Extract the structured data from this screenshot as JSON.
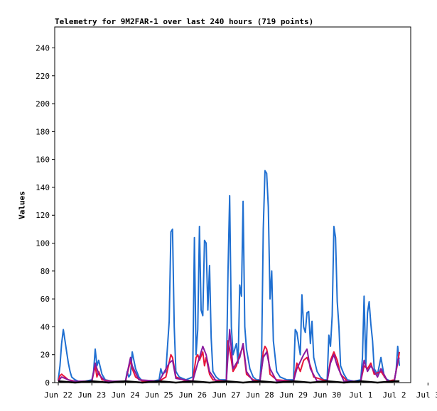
{
  "chart_data": {
    "type": "line",
    "title": "Telemetry for 9M2FAR-1 over last 240 hours (719 points)",
    "xlabel": "",
    "ylabel": "Values",
    "ylim": [
      0,
      255
    ],
    "yticks": [
      0,
      20,
      40,
      60,
      80,
      100,
      120,
      140,
      160,
      180,
      200,
      220,
      240
    ],
    "xlim_days": [
      0,
      10.5
    ],
    "xtick_labels": [
      "Jun 22",
      "Jun 23",
      "Jun 24",
      "Jun 25",
      "Jun 26",
      "Jun 27",
      "Jun 28",
      "Jun 29",
      "Jun 30",
      "Jul 1",
      "Jul 2",
      "Jul 3"
    ],
    "grid": false,
    "legend": "none",
    "series": [
      {
        "color": "#1f6fd1",
        "points": [
          [
            0.0,
            2
          ],
          [
            0.05,
            12
          ],
          [
            0.1,
            28
          ],
          [
            0.15,
            38
          ],
          [
            0.2,
            30
          ],
          [
            0.25,
            22
          ],
          [
            0.3,
            14
          ],
          [
            0.35,
            8
          ],
          [
            0.4,
            4
          ],
          [
            0.5,
            2
          ],
          [
            0.6,
            1
          ],
          [
            0.8,
            1
          ],
          [
            1.0,
            2
          ],
          [
            1.05,
            8
          ],
          [
            1.1,
            24
          ],
          [
            1.15,
            12
          ],
          [
            1.2,
            16
          ],
          [
            1.3,
            6
          ],
          [
            1.4,
            2
          ],
          [
            1.6,
            1
          ],
          [
            1.8,
            1
          ],
          [
            2.0,
            1
          ],
          [
            2.05,
            8
          ],
          [
            2.1,
            4
          ],
          [
            2.15,
            6
          ],
          [
            2.2,
            22
          ],
          [
            2.25,
            16
          ],
          [
            2.3,
            10
          ],
          [
            2.4,
            4
          ],
          [
            2.5,
            1
          ],
          [
            2.8,
            1
          ],
          [
            3.0,
            2
          ],
          [
            3.05,
            10
          ],
          [
            3.1,
            6
          ],
          [
            3.2,
            8
          ],
          [
            3.3,
            44
          ],
          [
            3.35,
            108
          ],
          [
            3.4,
            110
          ],
          [
            3.45,
            40
          ],
          [
            3.5,
            8
          ],
          [
            3.6,
            4
          ],
          [
            3.8,
            2
          ],
          [
            4.0,
            4
          ],
          [
            4.05,
            104
          ],
          [
            4.1,
            20
          ],
          [
            4.15,
            38
          ],
          [
            4.2,
            112
          ],
          [
            4.25,
            52
          ],
          [
            4.3,
            48
          ],
          [
            4.35,
            102
          ],
          [
            4.4,
            100
          ],
          [
            4.45,
            52
          ],
          [
            4.5,
            84
          ],
          [
            4.55,
            32
          ],
          [
            4.6,
            8
          ],
          [
            4.7,
            4
          ],
          [
            4.8,
            2
          ],
          [
            5.0,
            2
          ],
          [
            5.05,
            80
          ],
          [
            5.1,
            134
          ],
          [
            5.15,
            40
          ],
          [
            5.2,
            20
          ],
          [
            5.3,
            28
          ],
          [
            5.35,
            14
          ],
          [
            5.4,
            70
          ],
          [
            5.45,
            62
          ],
          [
            5.5,
            130
          ],
          [
            5.55,
            40
          ],
          [
            5.6,
            24
          ],
          [
            5.7,
            10
          ],
          [
            5.8,
            4
          ],
          [
            5.9,
            2
          ],
          [
            6.0,
            2
          ],
          [
            6.05,
            20
          ],
          [
            6.1,
            110
          ],
          [
            6.15,
            152
          ],
          [
            6.2,
            150
          ],
          [
            6.25,
            126
          ],
          [
            6.3,
            60
          ],
          [
            6.35,
            80
          ],
          [
            6.4,
            30
          ],
          [
            6.5,
            8
          ],
          [
            6.6,
            4
          ],
          [
            6.8,
            2
          ],
          [
            7.0,
            2
          ],
          [
            7.05,
            38
          ],
          [
            7.1,
            36
          ],
          [
            7.2,
            20
          ],
          [
            7.25,
            63
          ],
          [
            7.3,
            40
          ],
          [
            7.35,
            36
          ],
          [
            7.4,
            50
          ],
          [
            7.45,
            51
          ],
          [
            7.5,
            28
          ],
          [
            7.55,
            44
          ],
          [
            7.6,
            18
          ],
          [
            7.7,
            8
          ],
          [
            7.8,
            4
          ],
          [
            7.9,
            2
          ],
          [
            8.0,
            2
          ],
          [
            8.05,
            34
          ],
          [
            8.1,
            26
          ],
          [
            8.15,
            48
          ],
          [
            8.2,
            112
          ],
          [
            8.25,
            104
          ],
          [
            8.3,
            58
          ],
          [
            8.35,
            40
          ],
          [
            8.4,
            12
          ],
          [
            8.5,
            6
          ],
          [
            8.6,
            2
          ],
          [
            8.8,
            1
          ],
          [
            9.0,
            2
          ],
          [
            9.05,
            18
          ],
          [
            9.1,
            62
          ],
          [
            9.15,
            12
          ],
          [
            9.2,
            50
          ],
          [
            9.25,
            58
          ],
          [
            9.3,
            42
          ],
          [
            9.35,
            30
          ],
          [
            9.4,
            10
          ],
          [
            9.5,
            6
          ],
          [
            9.6,
            18
          ],
          [
            9.7,
            4
          ],
          [
            9.8,
            2
          ],
          [
            9.9,
            1
          ],
          [
            10.0,
            2
          ],
          [
            10.05,
            8
          ],
          [
            10.1,
            26
          ],
          [
            10.15,
            12
          ]
        ]
      },
      {
        "color": "#e8153a",
        "points": [
          [
            0.0,
            1
          ],
          [
            0.05,
            5
          ],
          [
            0.1,
            6
          ],
          [
            0.2,
            4
          ],
          [
            0.3,
            2
          ],
          [
            0.5,
            1
          ],
          [
            1.0,
            1
          ],
          [
            1.1,
            12
          ],
          [
            1.15,
            4
          ],
          [
            1.2,
            8
          ],
          [
            1.3,
            2
          ],
          [
            1.6,
            1
          ],
          [
            2.0,
            1
          ],
          [
            2.15,
            16
          ],
          [
            2.2,
            10
          ],
          [
            2.3,
            4
          ],
          [
            2.5,
            1
          ],
          [
            3.0,
            1
          ],
          [
            3.2,
            4
          ],
          [
            3.35,
            20
          ],
          [
            3.4,
            18
          ],
          [
            3.5,
            4
          ],
          [
            3.8,
            1
          ],
          [
            4.0,
            1
          ],
          [
            4.1,
            18
          ],
          [
            4.15,
            20
          ],
          [
            4.2,
            16
          ],
          [
            4.3,
            22
          ],
          [
            4.35,
            12
          ],
          [
            4.4,
            18
          ],
          [
            4.5,
            6
          ],
          [
            4.6,
            2
          ],
          [
            5.0,
            1
          ],
          [
            5.05,
            30
          ],
          [
            5.1,
            24
          ],
          [
            5.2,
            8
          ],
          [
            5.3,
            12
          ],
          [
            5.4,
            20
          ],
          [
            5.5,
            26
          ],
          [
            5.6,
            6
          ],
          [
            5.8,
            2
          ],
          [
            6.0,
            1
          ],
          [
            6.05,
            10
          ],
          [
            6.1,
            22
          ],
          [
            6.15,
            26
          ],
          [
            6.2,
            24
          ],
          [
            6.25,
            18
          ],
          [
            6.3,
            6
          ],
          [
            6.5,
            2
          ],
          [
            7.0,
            1
          ],
          [
            7.1,
            14
          ],
          [
            7.2,
            8
          ],
          [
            7.3,
            16
          ],
          [
            7.4,
            18
          ],
          [
            7.5,
            12
          ],
          [
            7.6,
            4
          ],
          [
            8.0,
            1
          ],
          [
            8.1,
            16
          ],
          [
            8.2,
            22
          ],
          [
            8.3,
            16
          ],
          [
            8.4,
            6
          ],
          [
            8.6,
            1
          ],
          [
            9.0,
            1
          ],
          [
            9.1,
            12
          ],
          [
            9.2,
            10
          ],
          [
            9.3,
            14
          ],
          [
            9.4,
            6
          ],
          [
            9.6,
            8
          ],
          [
            9.8,
            1
          ],
          [
            10.0,
            2
          ],
          [
            10.1,
            14
          ],
          [
            10.15,
            22
          ]
        ]
      },
      {
        "color": "#8a1a9e",
        "points": [
          [
            0.0,
            1
          ],
          [
            0.1,
            4
          ],
          [
            0.2,
            3
          ],
          [
            0.4,
            1
          ],
          [
            1.0,
            1
          ],
          [
            1.1,
            14
          ],
          [
            1.2,
            6
          ],
          [
            1.4,
            1
          ],
          [
            2.0,
            1
          ],
          [
            2.15,
            18
          ],
          [
            2.2,
            12
          ],
          [
            2.4,
            2
          ],
          [
            3.0,
            1
          ],
          [
            3.3,
            14
          ],
          [
            3.4,
            16
          ],
          [
            3.5,
            3
          ],
          [
            4.0,
            1
          ],
          [
            4.15,
            14
          ],
          [
            4.3,
            26
          ],
          [
            4.4,
            20
          ],
          [
            4.5,
            8
          ],
          [
            4.7,
            1
          ],
          [
            5.0,
            1
          ],
          [
            5.1,
            38
          ],
          [
            5.2,
            10
          ],
          [
            5.4,
            18
          ],
          [
            5.5,
            28
          ],
          [
            5.6,
            8
          ],
          [
            5.8,
            1
          ],
          [
            6.0,
            1
          ],
          [
            6.1,
            18
          ],
          [
            6.2,
            22
          ],
          [
            6.3,
            10
          ],
          [
            6.5,
            1
          ],
          [
            7.0,
            1
          ],
          [
            7.1,
            10
          ],
          [
            7.3,
            20
          ],
          [
            7.4,
            24
          ],
          [
            7.5,
            10
          ],
          [
            7.7,
            1
          ],
          [
            8.0,
            1
          ],
          [
            8.1,
            14
          ],
          [
            8.2,
            20
          ],
          [
            8.3,
            12
          ],
          [
            8.5,
            1
          ],
          [
            9.0,
            1
          ],
          [
            9.1,
            16
          ],
          [
            9.2,
            8
          ],
          [
            9.3,
            12
          ],
          [
            9.5,
            4
          ],
          [
            9.6,
            10
          ],
          [
            9.8,
            1
          ],
          [
            10.0,
            1
          ],
          [
            10.1,
            16
          ],
          [
            10.15,
            18
          ]
        ]
      },
      {
        "color": "#000000",
        "points": [
          [
            0.0,
            1
          ],
          [
            0.5,
            0
          ],
          [
            1.0,
            1
          ],
          [
            1.5,
            0
          ],
          [
            2.0,
            1
          ],
          [
            2.5,
            0
          ],
          [
            3.0,
            1
          ],
          [
            3.5,
            0
          ],
          [
            4.0,
            1
          ],
          [
            4.5,
            0
          ],
          [
            5.0,
            1
          ],
          [
            5.5,
            0
          ],
          [
            6.0,
            1
          ],
          [
            6.5,
            0
          ],
          [
            7.0,
            1
          ],
          [
            7.5,
            0
          ],
          [
            8.0,
            1
          ],
          [
            8.5,
            0
          ],
          [
            9.0,
            1
          ],
          [
            9.5,
            0
          ],
          [
            10.0,
            1
          ],
          [
            10.15,
            1
          ]
        ]
      }
    ]
  }
}
